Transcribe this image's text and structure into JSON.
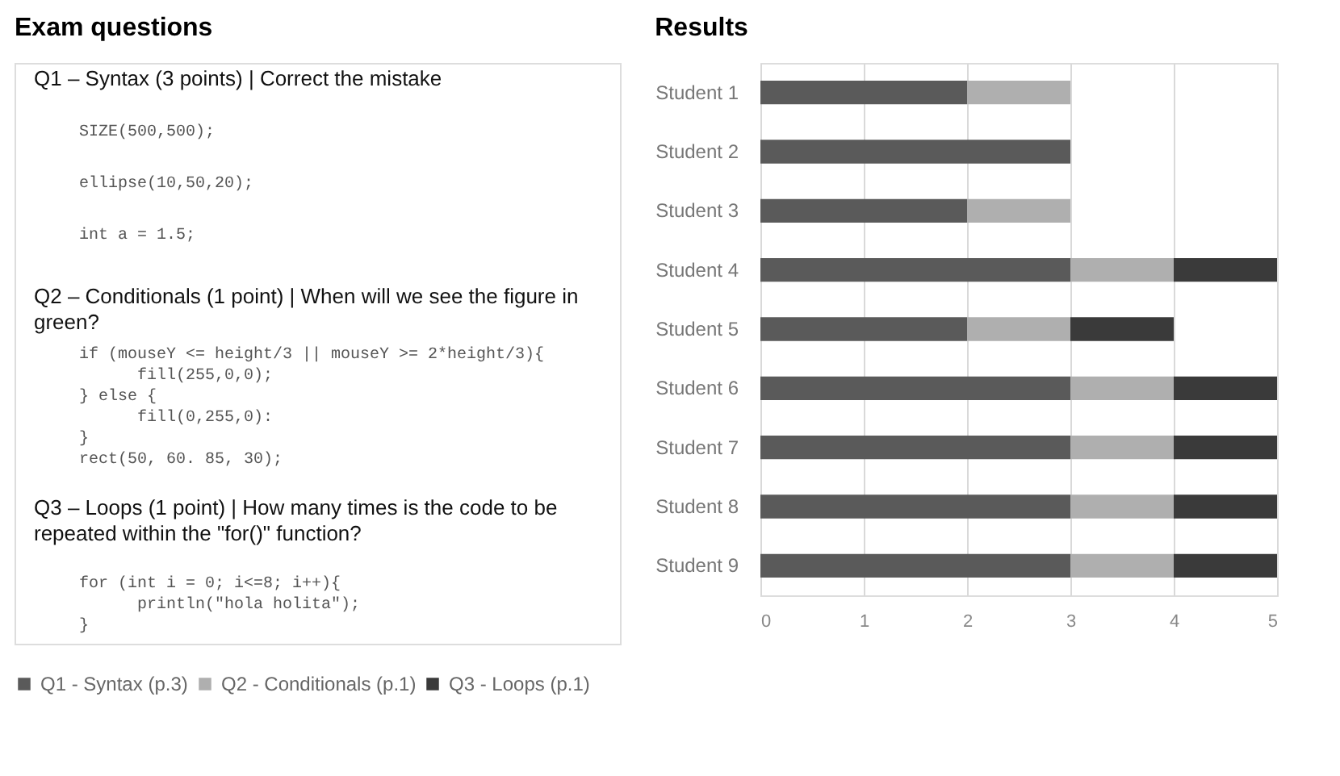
{
  "chart_data": [
    {
      "type": "other",
      "title": "Exam questions",
      "annotations": [
        "Q1 – Syntax (3 points) | Correct the mistake",
        "SIZE(500,500);",
        "ellipse(10,50,20);",
        "int a = 1.5;",
        "Q2 – Conditionals (1 point) | When will we see the figure in",
        "green?",
        "if (mouseY <= height/3 || mouseY >= 2*height/3){",
        "fill(255,0,0);",
        "} else {",
        "fill(0,255,0):",
        "}",
        "rect(50, 60. 85, 30);",
        "Q3 – Loops (1 point) | How many times is the code to be",
        "repeated within the \"for()\" function?",
        "for (int i = 0; i<=8; i++){",
        "println(\"hola holita\");",
        "}"
      ]
    },
    {
      "type": "bar",
      "orientation": "horizontal",
      "stacked": true,
      "title": "Results",
      "categories": [
        "Student 1",
        "Student 2",
        "Student 3",
        "Student 4",
        "Student 5",
        "Student 6",
        "Student 7",
        "Student 8",
        "Student 9"
      ],
      "series": [
        {
          "name": "Q1 - Syntax (p.3)",
          "color": "#5a5a5a",
          "values": [
            2,
            3,
            2,
            3,
            2,
            3,
            3,
            3,
            3
          ]
        },
        {
          "name": "Q2 - Conditionals (p.1)",
          "color": "#afafaf",
          "values": [
            1,
            0,
            1,
            1,
            1,
            1,
            1,
            1,
            1
          ]
        },
        {
          "name": "Q3 - Loops (p.1)",
          "color": "#3a3a3a",
          "values": [
            0,
            0,
            0,
            1,
            1,
            1,
            1,
            1,
            1
          ]
        }
      ],
      "xlim": [
        0,
        5
      ],
      "xticks": [
        0,
        1,
        2,
        3,
        4,
        5
      ],
      "grid": "x",
      "legend": "bottom"
    }
  ]
}
